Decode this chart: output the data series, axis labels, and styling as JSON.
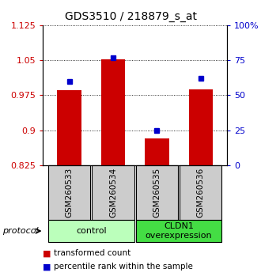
{
  "title": "GDS3510 / 218879_s_at",
  "samples": [
    "GSM260533",
    "GSM260534",
    "GSM260535",
    "GSM260536"
  ],
  "bar_values": [
    0.985,
    1.052,
    0.882,
    0.988
  ],
  "percentile_values": [
    60,
    77,
    25,
    62
  ],
  "ylim_left": [
    0.825,
    1.125
  ],
  "ylim_right": [
    0,
    100
  ],
  "yticks_left": [
    0.825,
    0.9,
    0.975,
    1.05,
    1.125
  ],
  "yticks_right": [
    0,
    25,
    50,
    75,
    100
  ],
  "ytick_labels_left": [
    "0.825",
    "0.9",
    "0.975",
    "1.05",
    "1.125"
  ],
  "ytick_labels_right": [
    "0",
    "25",
    "50",
    "75",
    "100%"
  ],
  "bar_color": "#cc0000",
  "marker_color": "#0000cc",
  "bar_width": 0.55,
  "protocol_groups": [
    {
      "label": "control",
      "samples": [
        0,
        1
      ],
      "color": "#bbffbb"
    },
    {
      "label": "CLDN1\noverexpression",
      "samples": [
        2,
        3
      ],
      "color": "#44dd44"
    }
  ],
  "protocol_label": "protocol",
  "legend_items": [
    {
      "label": "transformed count",
      "color": "#cc0000"
    },
    {
      "label": "percentile rank within the sample",
      "color": "#0000cc"
    }
  ],
  "background_color": "#ffffff",
  "xtick_bg_color": "#cccccc",
  "title_fontsize": 10,
  "tick_fontsize": 8,
  "label_fontsize": 8
}
